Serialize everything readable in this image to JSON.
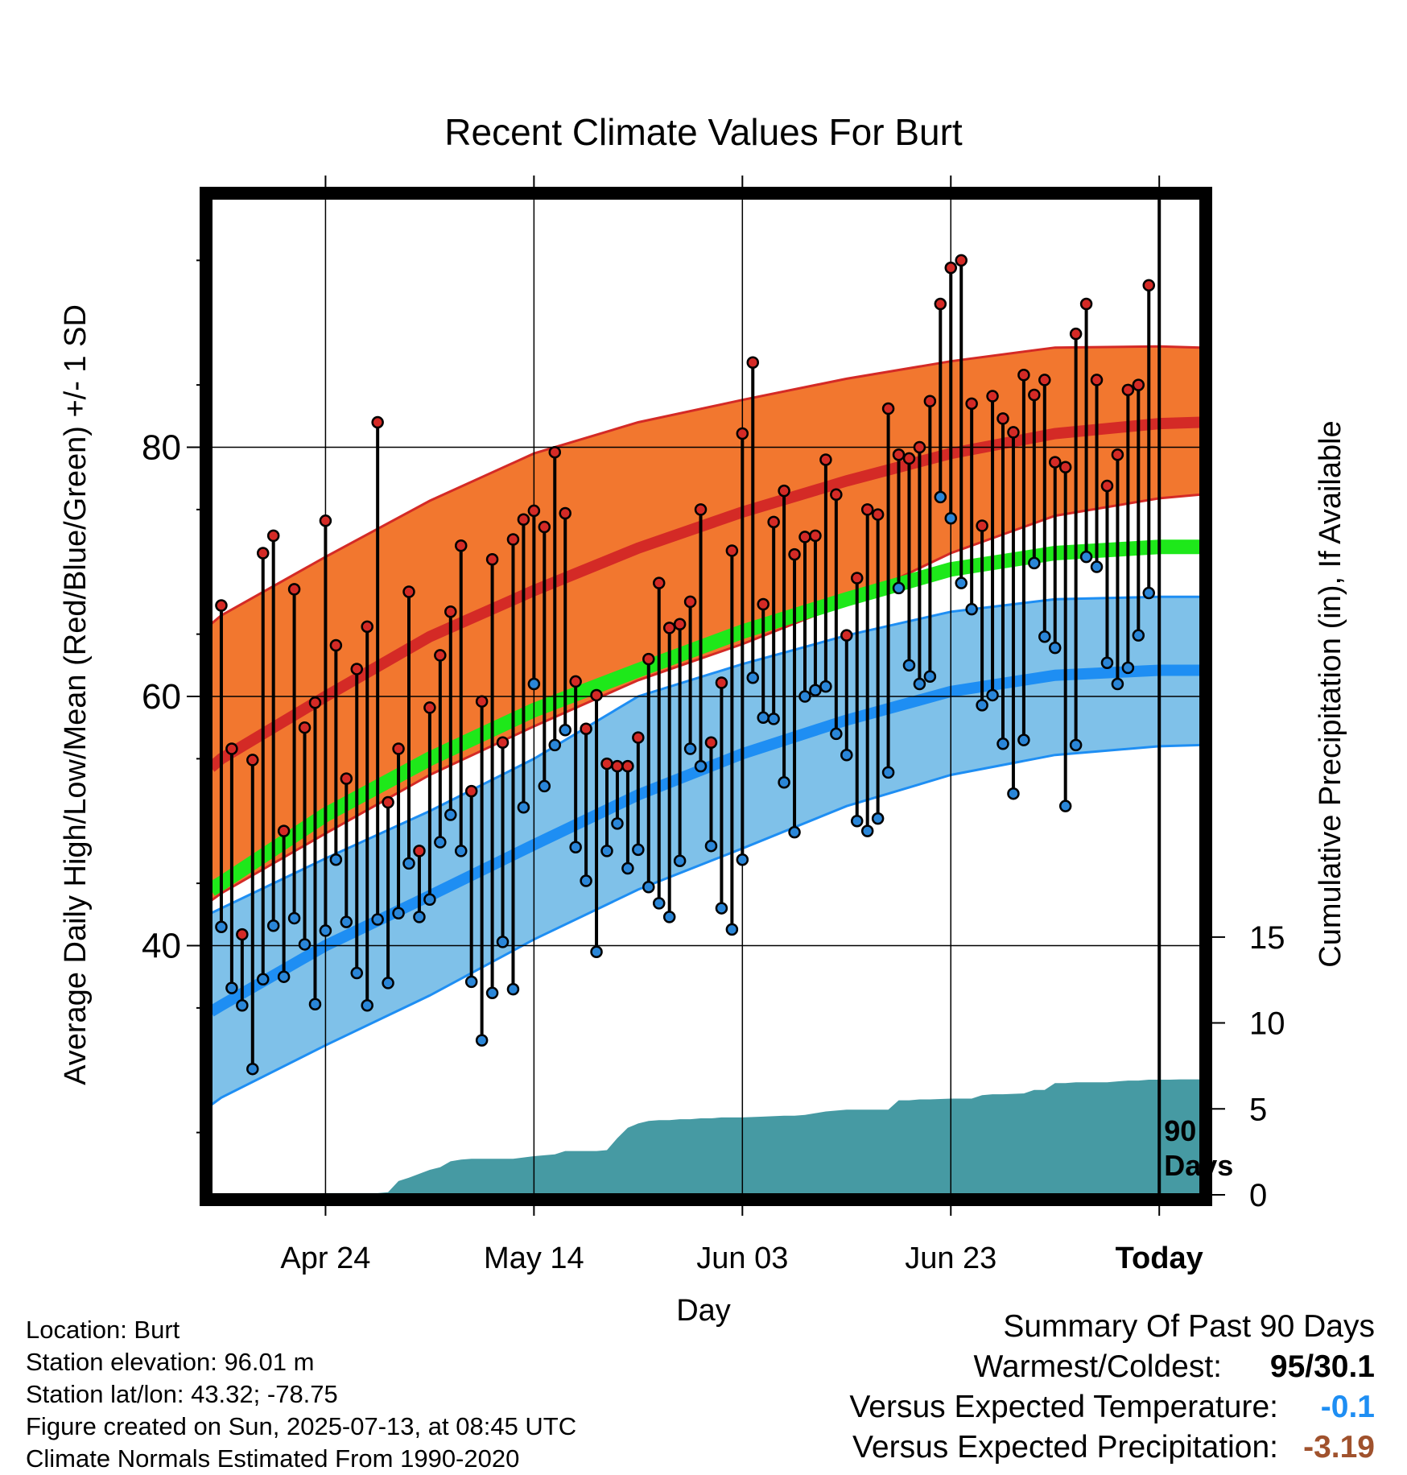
{
  "chart_data": {
    "type": "line",
    "title": "Recent Climate Values For Burt",
    "xlabel": "Day",
    "ylabel": "Average Daily High/Low/Mean (Red/Blue/Green) +/- 1 SD",
    "y2label": "Cumulative Precipitation (in), If Available",
    "x_tick_labels": [
      "Apr 24",
      "May 14",
      "Jun 03",
      "Jun 23",
      "Today"
    ],
    "x_ticks_day": [
      10,
      30,
      50,
      70,
      90
    ],
    "xlim": [
      -1,
      94
    ],
    "y_ticks": [
      40,
      60,
      80
    ],
    "ylim": [
      20,
      100
    ],
    "y2_ticks": [
      0,
      5,
      10,
      15
    ],
    "y2lim": [
      0,
      58
    ],
    "grid": true,
    "today_marker_label": "90 Days",
    "colors": {
      "high_mean": "#d42a26",
      "high_band": "#f2772f",
      "low_mean": "#1e8ef3",
      "low_band": "#7fc1e9",
      "mean": "#1ee81a",
      "precip": "#469aa3",
      "high_point": "#d42a26",
      "low_point": "#2a86d8"
    },
    "normals": {
      "day": [
        -1,
        0,
        10,
        20,
        30,
        40,
        50,
        60,
        70,
        80,
        90,
        94
      ],
      "high_mean": [
        54.3,
        55.0,
        60.0,
        64.8,
        68.5,
        71.9,
        74.8,
        77.3,
        79.5,
        81.1,
        81.9,
        82.0
      ],
      "high_upper": [
        65.8,
        66.5,
        71.2,
        75.7,
        79.5,
        82.0,
        83.8,
        85.5,
        86.9,
        88.0,
        88.1,
        88.0
      ],
      "high_lower": [
        43.6,
        44.2,
        49.0,
        53.7,
        57.6,
        61.3,
        64.2,
        67.5,
        71.5,
        74.5,
        75.9,
        76.2
      ],
      "mean": [
        44.5,
        45.0,
        50.5,
        55.0,
        58.9,
        62.1,
        65.2,
        67.8,
        70.2,
        71.5,
        72.0,
        72.0
      ],
      "low_mean": [
        34.7,
        35.2,
        40.0,
        44.0,
        48.1,
        52.1,
        55.4,
        58.1,
        60.4,
        61.7,
        62.1,
        62.1
      ],
      "low_upper": [
        42.6,
        43.0,
        47.0,
        50.8,
        55.0,
        60.0,
        62.6,
        64.9,
        66.8,
        67.8,
        68.0,
        68.0
      ],
      "low_lower": [
        27.2,
        27.8,
        32.0,
        36.0,
        40.5,
        44.5,
        47.8,
        51.2,
        53.7,
        55.3,
        56.0,
        56.1
      ]
    },
    "daily": {
      "day": [
        0,
        1,
        2,
        3,
        4,
        5,
        6,
        7,
        8,
        9,
        10,
        11,
        12,
        13,
        14,
        15,
        16,
        17,
        18,
        19,
        20,
        21,
        22,
        23,
        24,
        25,
        26,
        27,
        28,
        29,
        30,
        31,
        32,
        33,
        34,
        35,
        36,
        37,
        38,
        39,
        40,
        41,
        42,
        43,
        44,
        45,
        46,
        47,
        48,
        49,
        50,
        51,
        52,
        53,
        54,
        55,
        56,
        57,
        58,
        59,
        60,
        61,
        62,
        63,
        64,
        65,
        66,
        67,
        68,
        69,
        70,
        71,
        72,
        73,
        74,
        75,
        76,
        77,
        78,
        79,
        80,
        81,
        82,
        83,
        84,
        85,
        86,
        87,
        88,
        89
      ],
      "high": [
        67.3,
        55.8,
        40.9,
        54.9,
        71.5,
        72.9,
        49.2,
        68.6,
        57.5,
        59.5,
        74.1,
        64.1,
        53.4,
        62.2,
        65.6,
        82.0,
        51.5,
        55.8,
        68.4,
        47.6,
        59.1,
        63.3,
        66.8,
        72.1,
        52.4,
        59.6,
        71.0,
        56.3,
        72.6,
        74.2,
        74.9,
        73.6,
        79.6,
        74.7,
        61.2,
        57.4,
        60.1,
        54.6,
        54.4,
        54.4,
        56.7,
        63.0,
        69.1,
        65.5,
        65.8,
        67.6,
        75.0,
        56.3,
        61.1,
        71.7,
        81.1,
        86.8,
        67.4,
        74.0,
        76.5,
        71.4,
        72.8,
        72.9,
        79.0,
        76.2,
        64.9,
        69.5,
        75.0,
        74.6,
        83.1,
        79.4,
        79.1,
        80.0,
        83.7,
        91.5,
        94.4,
        95.0,
        83.5,
        73.7,
        84.1,
        82.3,
        81.2,
        85.8,
        84.2,
        85.4,
        78.8,
        78.4,
        89.1,
        91.5,
        85.4,
        76.9,
        79.4,
        84.6,
        85.0,
        93.0
      ],
      "low": [
        41.5,
        36.6,
        35.2,
        30.1,
        37.3,
        41.6,
        37.5,
        42.2,
        40.1,
        35.3,
        41.2,
        46.9,
        41.9,
        37.8,
        35.2,
        42.1,
        37.0,
        42.6,
        46.6,
        42.3,
        43.7,
        48.3,
        50.5,
        47.6,
        37.1,
        32.4,
        36.2,
        40.3,
        36.5,
        51.1,
        61.0,
        52.8,
        56.1,
        57.3,
        47.9,
        45.2,
        39.5,
        47.6,
        49.8,
        46.2,
        47.7,
        44.7,
        43.4,
        42.3,
        46.8,
        55.8,
        54.4,
        48.0,
        43.0,
        41.3,
        46.9,
        61.5,
        58.3,
        58.2,
        53.1,
        49.1,
        60.0,
        60.5,
        60.8,
        57.0,
        55.3,
        50.0,
        49.2,
        50.2,
        53.9,
        68.7,
        62.5,
        61.0,
        61.6,
        76.0,
        74.3,
        69.1,
        67.0,
        59.3,
        60.1,
        56.2,
        52.2,
        56.5,
        70.7,
        64.8,
        63.9,
        51.2,
        56.1,
        71.2,
        70.4,
        62.7,
        61.0,
        62.3,
        64.9,
        68.3
      ]
    },
    "precip": {
      "day": [
        0,
        10,
        15,
        16,
        17,
        18,
        20,
        21,
        22,
        23,
        24,
        26,
        28,
        30,
        31,
        32,
        33,
        34,
        35,
        36,
        37,
        38,
        39,
        40,
        41,
        42,
        43,
        44,
        45,
        46,
        47,
        48,
        50,
        52,
        54,
        55,
        56,
        57,
        58,
        59,
        60,
        62,
        64,
        65,
        66,
        67,
        68,
        70,
        72,
        73,
        74,
        75,
        77,
        78,
        79,
        80,
        81,
        82,
        83,
        84,
        85,
        86,
        87,
        88,
        89,
        90,
        91,
        92,
        93,
        94
      ],
      "value": [
        0.0,
        0.1,
        0.1,
        0.15,
        0.8,
        1.0,
        1.45,
        1.6,
        1.95,
        2.05,
        2.1,
        2.1,
        2.1,
        2.25,
        2.3,
        2.35,
        2.55,
        2.55,
        2.55,
        2.55,
        2.6,
        3.3,
        3.9,
        4.15,
        4.3,
        4.35,
        4.35,
        4.4,
        4.4,
        4.45,
        4.45,
        4.5,
        4.5,
        4.55,
        4.6,
        4.6,
        4.65,
        4.75,
        4.85,
        4.9,
        4.95,
        4.95,
        4.95,
        5.5,
        5.5,
        5.55,
        5.55,
        5.6,
        5.6,
        5.8,
        5.85,
        5.85,
        5.9,
        6.1,
        6.1,
        6.5,
        6.5,
        6.55,
        6.55,
        6.55,
        6.55,
        6.6,
        6.65,
        6.65,
        6.7,
        6.7,
        6.7,
        6.72,
        6.72,
        6.72
      ]
    }
  },
  "footer": {
    "location": "Location: Burt",
    "elevation": "Station elevation: 96.01 m",
    "latlon": "Station lat/lon: 43.32; -78.75",
    "created": "Figure created on Sun, 2025-07-13, at 08:45 UTC",
    "normals": "Climate Normals Estimated From 1990-2020"
  },
  "summary": {
    "title": "Summary Of Past 90 Days",
    "warmest_coldest_label": "Warmest/Coldest:",
    "warmest_coldest_value": "95/30.1",
    "temp_label": "Versus Expected Temperature:",
    "temp_value": "-0.1",
    "temp_color": "#1e8ef3",
    "precip_label": "Versus Expected Precipitation:",
    "precip_value": "-3.19",
    "precip_color": "#a0522d"
  }
}
